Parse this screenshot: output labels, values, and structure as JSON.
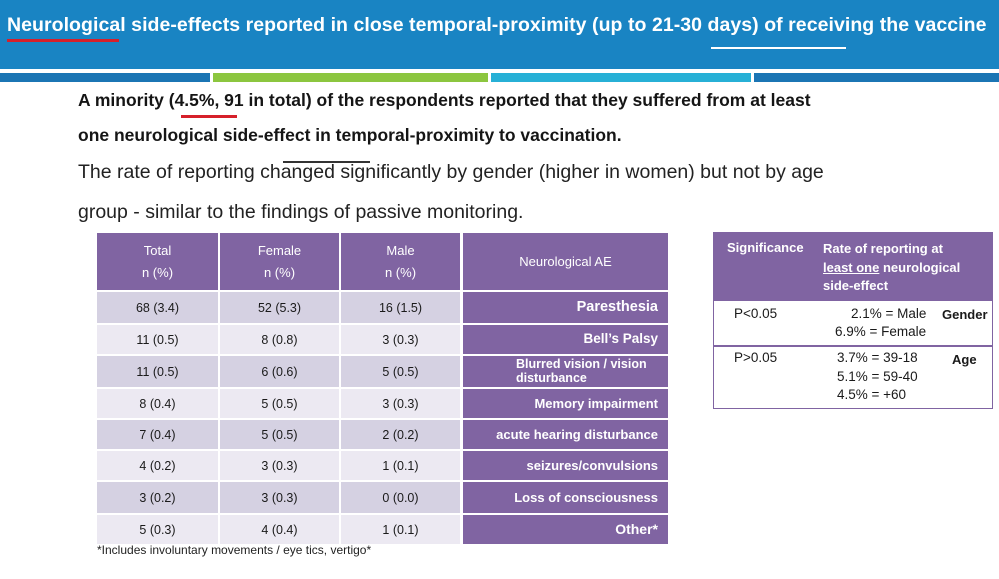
{
  "header": {
    "title": "Neurological side-effects reported in close temporal-proximity (up to 21-30 days) of receiving the vaccine",
    "strip_colors": [
      "#1b75b4",
      "#8cc63f",
      "#27b0d6",
      "#1b75b4"
    ]
  },
  "intro": {
    "bold_line_1": "A minority (4.5%, 91 in total) of the respondents reported that they suffered from at least",
    "bold_line_2": "one neurological side-effect in temporal-proximity to vaccination.",
    "line_3": "The rate of reporting changed significantly by gender (higher in women) but not by age",
    "line_4": "group - similar to the findings of passive monitoring."
  },
  "table": {
    "headers": {
      "total": [
        "Total",
        "n (%)"
      ],
      "female": [
        "Female",
        "n (%)"
      ],
      "male": [
        "Male",
        "n (%)"
      ],
      "ae": "Neurological AE"
    },
    "rows": [
      {
        "total": "68 (3.4)",
        "female": "52 (5.3)",
        "male": "16 (1.5)",
        "ae": "Paresthesia"
      },
      {
        "total": "11 (0.5)",
        "female": "8 (0.8)",
        "male": "3 (0.3)",
        "ae": "Bell’s Palsy"
      },
      {
        "total": "11 (0.5)",
        "female": "6 (0.6)",
        "male": "5 (0.5)",
        "ae": "Blurred vision /  vision disturbance"
      },
      {
        "total": "8 (0.4)",
        "female": "5 (0.5)",
        "male": "3 (0.3)",
        "ae": "Memory impairment"
      },
      {
        "total": "7 (0.4)",
        "female": "5 (0.5)",
        "male": "2 (0.2)",
        "ae": "acute hearing disturbance"
      },
      {
        "total": "4 (0.2)",
        "female": "3 (0.3)",
        "male": "1 (0.1)",
        "ae": "seizures/convulsions"
      },
      {
        "total": "3 (0.2)",
        "female": "3 (0.3)",
        "male": "0 (0.0)",
        "ae": "Loss of consciousness"
      },
      {
        "total": "5 (0.3)",
        "female": "4 (0.4)",
        "male": "1 (0.1)",
        "ae": "Other*"
      }
    ],
    "footnote": "*Includes involuntary movements / eye tics, vertigo*"
  },
  "significance": {
    "header_sig": "Significance",
    "header_rate_1": "Rate of reporting at",
    "header_rate_2": "least one",
    "header_rate_3": " neurological",
    "header_rate_4": "side-effect",
    "gender": {
      "p": "P<0.05",
      "line_1": "2.1% = Male",
      "line_2": "6.9%  = Female",
      "label": "Gender"
    },
    "age": {
      "p": "P>0.05",
      "line_1": "3.7% = 39-18",
      "line_2": "5.1% = 59-40",
      "line_3": "4.5% =   +60",
      "label": "Age"
    }
  }
}
